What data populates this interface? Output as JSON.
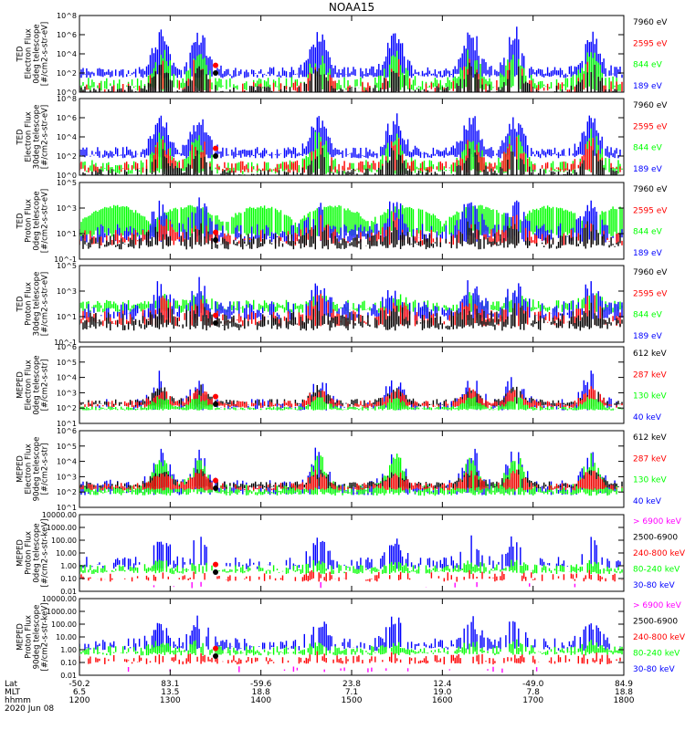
{
  "chart_data": {
    "type": "line",
    "title": "NOAA15",
    "x_ticks": [
      "1200",
      "1300",
      "1400",
      "1500",
      "1600",
      "1700",
      "1800"
    ],
    "footer": {
      "row_labels": [
        "Lat",
        "MLT",
        "hhmm"
      ],
      "lat": [
        "-50.2",
        "83.1",
        "-59.6",
        "23.8",
        "12.4",
        "-49.0",
        "84.9"
      ],
      "mlt": [
        "6.5",
        "13.5",
        "18.8",
        "7.1",
        "19.0",
        "7.8",
        "18.8"
      ],
      "hhmm": [
        "1200",
        "1300",
        "1400",
        "1500",
        "1600",
        "1700",
        "1800"
      ],
      "date": "2020 Jun 08"
    },
    "colors": {
      "black": "#000000",
      "red": "#ff0000",
      "green": "#00ff00",
      "blue": "#0000ff",
      "magenta": "#ff00ff"
    },
    "panels": [
      {
        "ylabel": [
          "TED",
          "Electron Flux",
          "0deg telescope",
          "[#/cm2-s-str-eV]"
        ],
        "scale": "log",
        "ylim_exp": [
          0,
          8
        ],
        "yticks": [
          "10^0",
          "10^2",
          "10^4",
          "10^6",
          "10^8"
        ],
        "legend": [
          {
            "text": "7960 eV",
            "color": "black"
          },
          {
            "text": "2595 eV",
            "color": "red"
          },
          {
            "text": "844 eV",
            "color": "green"
          },
          {
            "text": "189 eV",
            "color": "blue"
          }
        ],
        "series": {
          "blue": {
            "base": 2.2,
            "noise": 0.5,
            "peak_amp": 4.5,
            "fill": 0.95
          },
          "green": {
            "base": 1.0,
            "noise": 0.6,
            "peak_amp": 3.5,
            "fill": 0.8
          },
          "red": {
            "base": 0.6,
            "noise": 0.5,
            "peak_amp": 3.0,
            "fill": 0.35
          },
          "black": {
            "base": 0.3,
            "noise": 0.4,
            "peak_amp": 2.5,
            "fill": 0.6
          }
        }
      },
      {
        "ylabel": [
          "TED",
          "Electron Flux",
          "30deg telescope",
          "[#/cm2-s-str-eV]"
        ],
        "scale": "log",
        "ylim_exp": [
          0,
          8
        ],
        "yticks": [
          "10^0",
          "10^2",
          "10^4",
          "10^6",
          "10^8"
        ],
        "legend": [
          {
            "text": "7960 eV",
            "color": "black"
          },
          {
            "text": "2595 eV",
            "color": "red"
          },
          {
            "text": "844 eV",
            "color": "green"
          },
          {
            "text": "189 eV",
            "color": "blue"
          }
        ],
        "series": {
          "blue": {
            "base": 2.5,
            "noise": 0.5,
            "peak_amp": 4.0,
            "fill": 0.95
          },
          "green": {
            "base": 1.0,
            "noise": 0.6,
            "peak_amp": 3.5,
            "fill": 0.8
          },
          "red": {
            "base": 1.0,
            "noise": 0.5,
            "peak_amp": 3.0,
            "fill": 0.6
          },
          "black": {
            "base": 0.3,
            "noise": 0.4,
            "peak_amp": 2.5,
            "fill": 0.6
          }
        }
      },
      {
        "ylabel": [
          "TED",
          "Proton Flux",
          "0deg telescope",
          "[#/cm2-s-str-eV]"
        ],
        "scale": "log",
        "ylim_exp": [
          -1,
          5
        ],
        "yticks": [
          "10^-1",
          "10^1",
          "10^3",
          "10^5"
        ],
        "legend": [
          {
            "text": "7960 eV",
            "color": "black"
          },
          {
            "text": "2595 eV",
            "color": "red"
          },
          {
            "text": "844 eV",
            "color": "green"
          },
          {
            "text": "189 eV",
            "color": "blue"
          }
        ],
        "series": {
          "green": {
            "base": 1.5,
            "noise": 0.5,
            "peak_amp": 1.8,
            "fill": 0.9,
            "wave": true
          },
          "blue": {
            "base": 1.2,
            "noise": 0.6,
            "peak_amp": 2.5,
            "fill": 0.7
          },
          "red": {
            "base": 0.8,
            "noise": 0.5,
            "peak_amp": 1.5,
            "fill": 0.5
          },
          "black": {
            "base": 0.5,
            "noise": 0.5,
            "peak_amp": 1.2,
            "fill": 0.7
          }
        }
      },
      {
        "ylabel": [
          "TED",
          "Proton Flux",
          "30deg telescope",
          "[#/cm2-s-str-eV]"
        ],
        "scale": "log",
        "ylim_exp": [
          -1,
          5
        ],
        "yticks": [
          "10^-1",
          "10^1",
          "10^3",
          "10^5"
        ],
        "legend": [
          {
            "text": "7960 eV",
            "color": "black"
          },
          {
            "text": "2595 eV",
            "color": "red"
          },
          {
            "text": "844 eV",
            "color": "green"
          },
          {
            "text": "189 eV",
            "color": "blue"
          }
        ],
        "series": {
          "green": {
            "base": 1.9,
            "noise": 0.4,
            "peak_amp": 0.8,
            "fill": 0.9
          },
          "blue": {
            "base": 1.6,
            "noise": 0.6,
            "peak_amp": 2.0,
            "fill": 0.7
          },
          "red": {
            "base": 1.0,
            "noise": 0.5,
            "peak_amp": 1.5,
            "fill": 0.6
          },
          "black": {
            "base": 0.8,
            "noise": 0.6,
            "peak_amp": 1.0,
            "fill": 0.7
          }
        }
      },
      {
        "ylabel": [
          "MEPED",
          "Electron Flux",
          "0deg telescope",
          "[#/cm2-s-str]"
        ],
        "scale": "log",
        "ylim_exp": [
          1,
          6
        ],
        "yticks": [
          "10^1",
          "10^2",
          "10^3",
          "10^4",
          "10^5",
          "10^6"
        ],
        "legend": [
          {
            "text": "612 keV",
            "color": "black"
          },
          {
            "text": "287 keV",
            "color": "red"
          },
          {
            "text": "130 keV",
            "color": "green"
          },
          {
            "text": "40 keV",
            "color": "blue"
          }
        ],
        "series": {
          "blue": {
            "base": 2.3,
            "noise": 0.3,
            "peak_amp": 2.0,
            "fill": 0.4
          },
          "black": {
            "base": 2.4,
            "noise": 0.2,
            "peak_amp": 1.0,
            "fill": 0.8
          },
          "red": {
            "base": 2.3,
            "noise": 0.2,
            "peak_amp": 1.0,
            "fill": 0.8
          },
          "green": {
            "base": 2.0,
            "noise": 0.1,
            "peak_amp": 0.8,
            "fill": 0.95
          }
        }
      },
      {
        "ylabel": [
          "MEPED",
          "Electron Flux",
          "90deg telescope",
          "[#/cm2-s-str]"
        ],
        "scale": "log",
        "ylim_exp": [
          1,
          6
        ],
        "yticks": [
          "10^1",
          "10^2",
          "10^3",
          "10^4",
          "10^5",
          "10^6"
        ],
        "legend": [
          {
            "text": "612 keV",
            "color": "black"
          },
          {
            "text": "287 keV",
            "color": "red"
          },
          {
            "text": "130 keV",
            "color": "green"
          },
          {
            "text": "40 keV",
            "color": "blue"
          }
        ],
        "series": {
          "blue": {
            "base": 2.4,
            "noise": 0.4,
            "peak_amp": 2.5,
            "fill": 0.6
          },
          "green": {
            "base": 2.2,
            "noise": 0.3,
            "peak_amp": 2.3,
            "fill": 0.9
          },
          "black": {
            "base": 2.5,
            "noise": 0.2,
            "peak_amp": 1.0,
            "fill": 0.8
          },
          "red": {
            "base": 2.4,
            "noise": 0.2,
            "peak_amp": 1.0,
            "fill": 0.8
          }
        }
      },
      {
        "ylabel": [
          "MEPED",
          "Proton Flux",
          "0deg telescope",
          "[#/cm2-s-str-keV]"
        ],
        "scale": "log",
        "ylim_exp": [
          -2,
          4
        ],
        "yticks": [
          "0.01",
          "0.10",
          "1.00",
          "10.00",
          "100.00",
          "1000.00",
          "10000.00"
        ],
        "legend": [
          {
            "text": "> 6900 keV",
            "color": "magenta"
          },
          {
            "text": "2500-6900",
            "color": "black"
          },
          {
            "text": "240-800 keV",
            "color": "red"
          },
          {
            "text": "80-240 keV",
            "color": "green"
          },
          {
            "text": "30-80 keV",
            "color": "blue"
          }
        ],
        "series": {
          "blue": {
            "base": 0.3,
            "noise": 0.4,
            "peak_amp": 2.0,
            "fill": 0.5
          },
          "green": {
            "base": -0.2,
            "noise": 0.3,
            "peak_amp": 0.5,
            "fill": 0.8
          },
          "red": {
            "base": -0.8,
            "noise": 0.3,
            "peak_amp": 0.3,
            "fill": 0.4
          },
          "magenta": {
            "base": -1.5,
            "noise": 0.2,
            "peak_amp": 0.2,
            "fill": 0.05
          }
        }
      },
      {
        "ylabel": [
          "MEPED",
          "Proton Flux",
          "90deg telescope",
          "[#/cm2-s-str-keV]"
        ],
        "scale": "log",
        "ylim_exp": [
          -2,
          4
        ],
        "yticks": [
          "0.01",
          "0.10",
          "1.00",
          "10.00",
          "100.00",
          "1000.00",
          "10000.00"
        ],
        "legend": [
          {
            "text": "> 6900 keV",
            "color": "magenta"
          },
          {
            "text": "2500-6900",
            "color": "black"
          },
          {
            "text": "240-800 keV",
            "color": "red"
          },
          {
            "text": "80-240 keV",
            "color": "green"
          },
          {
            "text": "30-80 keV",
            "color": "blue"
          }
        ],
        "series": {
          "blue": {
            "base": 0.5,
            "noise": 0.4,
            "peak_amp": 2.0,
            "fill": 0.6
          },
          "green": {
            "base": 0.0,
            "noise": 0.3,
            "peak_amp": 0.6,
            "fill": 0.8
          },
          "red": {
            "base": -0.7,
            "noise": 0.3,
            "peak_amp": 0.3,
            "fill": 0.5
          },
          "magenta": {
            "base": -1.5,
            "noise": 0.2,
            "peak_amp": 0.2,
            "fill": 0.05
          }
        }
      }
    ],
    "pass_peaks": [
      0.15,
      0.22,
      0.44,
      0.58,
      0.72,
      0.8,
      0.94
    ],
    "gap": [
      0.245,
      0.25
    ]
  }
}
